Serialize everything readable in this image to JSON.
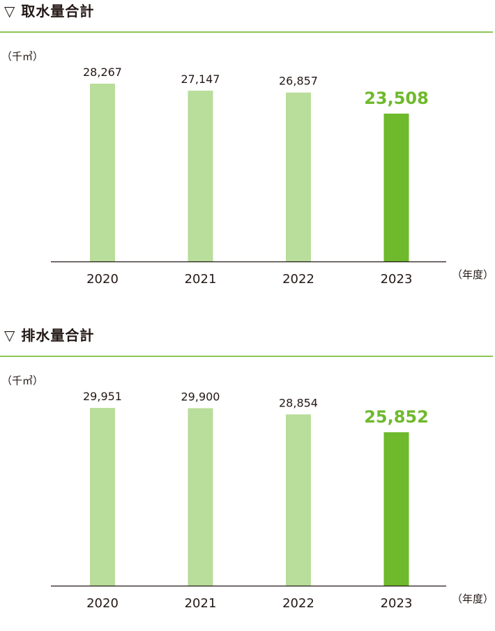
{
  "colors": {
    "bar_light": "#b9dd9a",
    "bar_highlight": "#6fb92c",
    "label_highlight": "#6fb92c",
    "rule": "#8dc556",
    "axis": "#231815"
  },
  "chart_data": [
    {
      "type": "bar",
      "title": "▽ 取水量合計",
      "ylabel": "（千㎥）",
      "xlabel": "（年度）",
      "categories": [
        "2020",
        "2021",
        "2022",
        "2023"
      ],
      "values": [
        28267,
        27147,
        26857,
        23508
      ],
      "value_labels": [
        "28,267",
        "27,147",
        "26,857",
        "23,508"
      ],
      "highlight_index": 3,
      "ylim": [
        0,
        28267
      ],
      "grid": false
    },
    {
      "type": "bar",
      "title": "▽ 排水量合計",
      "ylabel": "（千㎥）",
      "xlabel": "（年度）",
      "categories": [
        "2020",
        "2021",
        "2022",
        "2023"
      ],
      "values": [
        29951,
        29900,
        28854,
        25852
      ],
      "value_labels": [
        "29,951",
        "29,900",
        "28,854",
        "25,852"
      ],
      "highlight_index": 3,
      "ylim": [
        0,
        29951
      ],
      "grid": false
    }
  ]
}
